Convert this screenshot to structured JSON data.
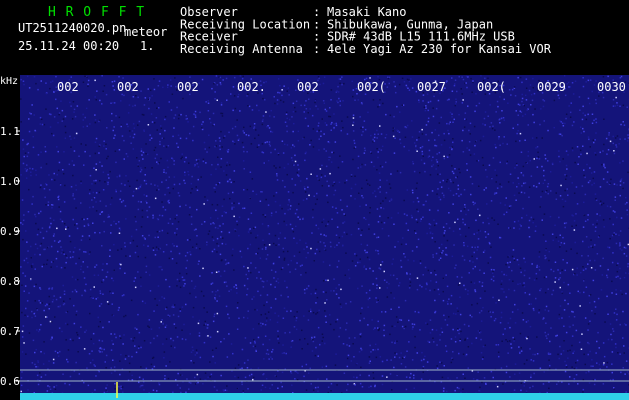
{
  "header": {
    "app": "H R O F F T",
    "file": "UT2511240020.pn",
    "mode": "meteor",
    "datetime": "25.11.24 00:20",
    "index": "1.",
    "fields": [
      {
        "label": "Observer",
        "sep": ":",
        "value": "Masaki Kano"
      },
      {
        "label": "Receiving Location",
        "sep": ":",
        "value": "Shibukawa, Gunma, Japan"
      },
      {
        "label": "Receiver",
        "sep": ":",
        "value": "SDR# 43dB L15 111.6MHz USB"
      },
      {
        "label": "Receiving Antenna",
        "sep": ":",
        "value": "4ele Yagi Az 230 for Kansai VOR"
      }
    ]
  },
  "y_axis": {
    "unit": "kHz",
    "labels": [
      "1.1",
      "1.0",
      "0.9",
      "0.8",
      "0.7",
      "0.6"
    ]
  },
  "x_axis": {
    "labels": [
      "002",
      "002",
      "002",
      "002.",
      "002",
      "002(",
      "0027",
      "002(",
      "0029",
      "0030"
    ]
  }
}
